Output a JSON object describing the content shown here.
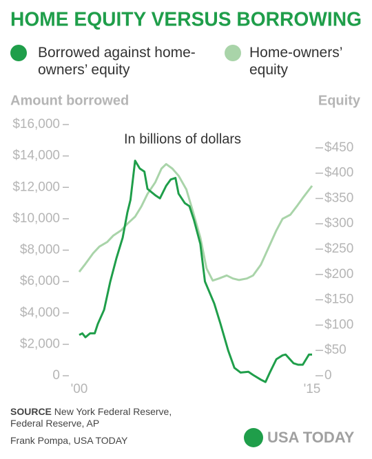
{
  "chart_data": {
    "type": "line",
    "title": "HOME EQUITY VERSUS BORROWING",
    "subtitle": "In billions of dollars",
    "y_label": "Amount borrowed",
    "y2_label": "Equity",
    "xlim": [
      2000,
      2015
    ],
    "xticks": [
      {
        "value": 2000,
        "label": "'00"
      },
      {
        "value": 2015,
        "label": "'15"
      }
    ],
    "ylim": [
      0,
      16000
    ],
    "yticks": [
      0,
      {
        "value": 2000,
        "label": "$2,000"
      },
      {
        "value": 4000,
        "label": "$4,000"
      },
      {
        "value": 6000,
        "label": "$6,000"
      },
      {
        "value": 8000,
        "label": "$8,000"
      },
      {
        "value": 10000,
        "label": "$10,000"
      },
      {
        "value": 12000,
        "label": "$12,000"
      },
      {
        "value": 14000,
        "label": "$14,000"
      },
      {
        "value": 16000,
        "label": "$16,000"
      }
    ],
    "y2lim": [
      0,
      496
    ],
    "y2ticks": [
      0,
      {
        "value": 50,
        "label": "$50"
      },
      {
        "value": 100,
        "label": "$100"
      },
      {
        "value": 150,
        "label": "$150"
      },
      {
        "value": 200,
        "label": "$200"
      },
      {
        "value": 250,
        "label": "$250"
      },
      {
        "value": 300,
        "label": "$300"
      },
      {
        "value": 350,
        "label": "$350"
      },
      {
        "value": 400,
        "label": "$400"
      },
      {
        "value": 450,
        "label": "$450"
      }
    ],
    "series": [
      {
        "name": "Borrowed against home-owners’ equity",
        "color": "#1f9e4a",
        "x": [
          2000,
          2000.2,
          2000.4,
          2000.7,
          2001,
          2001.2,
          2001.6,
          2002,
          2002.4,
          2002.8,
          2003.1,
          2003.3,
          2003.6,
          2003.9,
          2004.2,
          2004.4,
          2004.9,
          2005.2,
          2005.6,
          2005.9,
          2006.2,
          2006.4,
          2006.8,
          2007.1,
          2007.4,
          2007.8,
          2008.1,
          2008.7,
          2009.1,
          2009.6,
          2010,
          2010.4,
          2010.9,
          2011.2,
          2011.7,
          2012,
          2012.3,
          2012.7,
          2013.1,
          2013.3,
          2013.8,
          2014.1,
          2014.4,
          2014.8,
          2015
        ],
        "values": [
          2600,
          2700,
          2450,
          2700,
          2700,
          3300,
          4200,
          6000,
          7500,
          8800,
          10400,
          11200,
          13700,
          13200,
          13000,
          11900,
          11500,
          11300,
          12100,
          12500,
          12600,
          11600,
          11000,
          10800,
          9900,
          8400,
          6000,
          4600,
          3300,
          1600,
          500,
          200,
          250,
          50,
          -250,
          -400,
          250,
          1050,
          1300,
          1350,
          800,
          700,
          700,
          1350,
          1350
        ]
      },
      {
        "name": "Home-owners’ equity",
        "color": "#a9d4a9",
        "axis": "y2",
        "x": [
          2000,
          2000.4,
          2000.9,
          2001.3,
          2001.8,
          2002.2,
          2002.7,
          2003.1,
          2003.6,
          2004,
          2004.4,
          2004.9,
          2005.3,
          2005.6,
          2006,
          2006.4,
          2006.9,
          2007.3,
          2007.8,
          2008.2,
          2008.6,
          2009,
          2009.5,
          2009.9,
          2010.3,
          2010.8,
          2011.2,
          2011.7,
          2012.2,
          2012.7,
          2013.1,
          2013.6,
          2014,
          2014.4,
          2015
        ],
        "values": [
          205,
          221,
          242,
          255,
          264,
          277,
          287,
          300,
          314,
          334,
          359,
          382,
          409,
          418,
          409,
          395,
          368,
          327,
          273,
          212,
          188,
          192,
          198,
          192,
          189,
          192,
          198,
          219,
          253,
          287,
          310,
          318,
          334,
          351,
          375
        ]
      }
    ],
    "source_label": "SOURCE",
    "source": "New York Federal Reserve, Federal Reserve, AP",
    "credit": "Frank Pompa, USA TODAY",
    "logo": "USA TODAY"
  }
}
